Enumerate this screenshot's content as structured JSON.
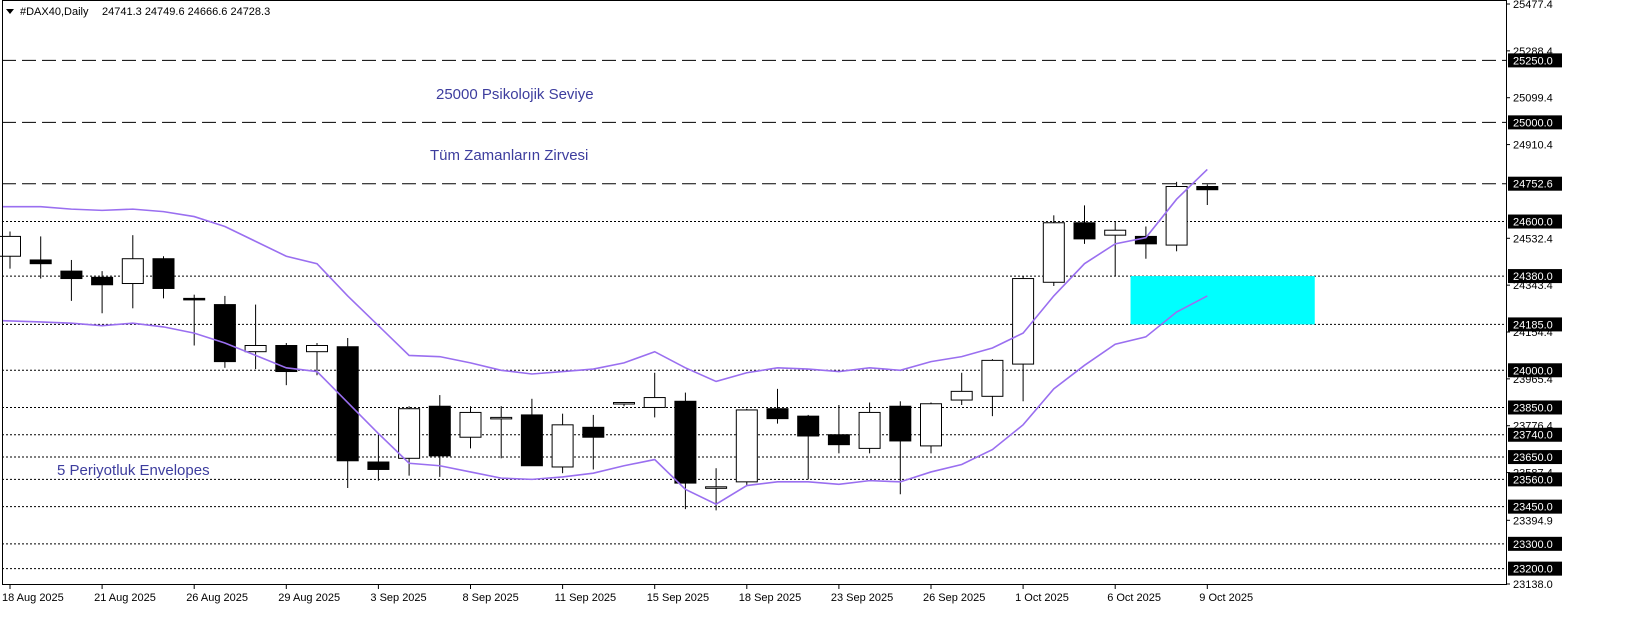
{
  "header": {
    "symbol": "#DAX40,Daily",
    "ohlc": "24741.3 24749.6 24666.6 24728.3"
  },
  "chart_data": {
    "type": "candlestick",
    "title": "#DAX40,Daily",
    "ylim": [
      23138.0,
      25477.4
    ],
    "grid": false,
    "colors": {
      "bull": "#ffffff",
      "bear": "#000000",
      "envelope": "#9a6ff0",
      "zone": "#00ffff",
      "annotation": "#3d3d9e"
    },
    "price_ticks": [
      "25477.4",
      "25288.4",
      "25099.4",
      "24910.4",
      "24532.4",
      "24343.4",
      "24154.4",
      "23965.4",
      "23776.4",
      "23587.4",
      "23394.9",
      "23138.0"
    ],
    "level_labels": [
      "25250.0",
      "25000.0",
      "24752.6",
      "24600.0",
      "24380.0",
      "24185.0",
      "24000.0",
      "23850.0",
      "23740.0",
      "23650.0",
      "23560.0",
      "23450.0",
      "23300.0",
      "23200.0"
    ],
    "dashed_levels": [
      25250.0,
      25000.0,
      24752.6
    ],
    "dotted_levels": [
      24600.0,
      24380.0,
      24185.0,
      24000.0,
      23850.0,
      23740.0,
      23650.0,
      23560.0,
      23450.0,
      23300.0,
      23200.0
    ],
    "date_labels": [
      {
        "text": "18 Aug 2025",
        "bar": 0
      },
      {
        "text": "21 Aug 2025",
        "bar": 3
      },
      {
        "text": "26 Aug 2025",
        "bar": 6
      },
      {
        "text": "29 Aug 2025",
        "bar": 9
      },
      {
        "text": "3 Sep 2025",
        "bar": 12
      },
      {
        "text": "8 Sep 2025",
        "bar": 15
      },
      {
        "text": "11 Sep 2025",
        "bar": 18
      },
      {
        "text": "15 Sep 2025",
        "bar": 21
      },
      {
        "text": "18 Sep 2025",
        "bar": 24
      },
      {
        "text": "23 Sep 2025",
        "bar": 27
      },
      {
        "text": "26 Sep 2025",
        "bar": 30
      },
      {
        "text": "1 Oct 2025",
        "bar": 33
      },
      {
        "text": "6 Oct 2025",
        "bar": 36
      },
      {
        "text": "9 Oct 2025",
        "bar": 39
      }
    ],
    "candles": [
      {
        "o": 24460,
        "h": 24560,
        "l": 24410,
        "c": 24540
      },
      {
        "o": 24445,
        "h": 24540,
        "l": 24370,
        "c": 24430
      },
      {
        "o": 24400,
        "h": 24445,
        "l": 24280,
        "c": 24370
      },
      {
        "o": 24375,
        "h": 24400,
        "l": 24230,
        "c": 24345
      },
      {
        "o": 24350,
        "h": 24545,
        "l": 24250,
        "c": 24450
      },
      {
        "o": 24450,
        "h": 24460,
        "l": 24290,
        "c": 24330
      },
      {
        "o": 24290,
        "h": 24305,
        "l": 24100,
        "c": 24285
      },
      {
        "o": 24265,
        "h": 24300,
        "l": 24010,
        "c": 24035
      },
      {
        "o": 24075,
        "h": 24265,
        "l": 24005,
        "c": 24100
      },
      {
        "o": 24100,
        "h": 24110,
        "l": 23940,
        "c": 23995
      },
      {
        "o": 24075,
        "h": 24110,
        "l": 23980,
        "c": 24100
      },
      {
        "o": 24095,
        "h": 24130,
        "l": 23525,
        "c": 23635
      },
      {
        "o": 23630,
        "h": 23740,
        "l": 23555,
        "c": 23600
      },
      {
        "o": 23645,
        "h": 23855,
        "l": 23575,
        "c": 23845
      },
      {
        "o": 23855,
        "h": 23900,
        "l": 23570,
        "c": 23655
      },
      {
        "o": 23730,
        "h": 23855,
        "l": 23685,
        "c": 23830
      },
      {
        "o": 23810,
        "h": 23855,
        "l": 23645,
        "c": 23810
      },
      {
        "o": 23820,
        "h": 23885,
        "l": 23615,
        "c": 23615
      },
      {
        "o": 23610,
        "h": 23825,
        "l": 23585,
        "c": 23780
      },
      {
        "o": 23770,
        "h": 23820,
        "l": 23600,
        "c": 23730
      },
      {
        "o": 23865,
        "h": 23870,
        "l": 23855,
        "c": 23870
      },
      {
        "o": 23850,
        "h": 23990,
        "l": 23810,
        "c": 23890
      },
      {
        "o": 23875,
        "h": 23910,
        "l": 23440,
        "c": 23545
      },
      {
        "o": 23530,
        "h": 23605,
        "l": 23435,
        "c": 23530
      },
      {
        "o": 23550,
        "h": 23845,
        "l": 23535,
        "c": 23840
      },
      {
        "o": 23845,
        "h": 23925,
        "l": 23785,
        "c": 23805
      },
      {
        "o": 23815,
        "h": 23820,
        "l": 23560,
        "c": 23735
      },
      {
        "o": 23740,
        "h": 23860,
        "l": 23665,
        "c": 23700
      },
      {
        "o": 23685,
        "h": 23870,
        "l": 23665,
        "c": 23830
      },
      {
        "o": 23855,
        "h": 23875,
        "l": 23500,
        "c": 23715
      },
      {
        "o": 23695,
        "h": 23870,
        "l": 23665,
        "c": 23865
      },
      {
        "o": 23880,
        "h": 23990,
        "l": 23860,
        "c": 23915
      },
      {
        "o": 23895,
        "h": 24045,
        "l": 23815,
        "c": 24040
      },
      {
        "o": 24025,
        "h": 24380,
        "l": 23875,
        "c": 24370
      },
      {
        "o": 24355,
        "h": 24625,
        "l": 24340,
        "c": 24595
      },
      {
        "o": 24595,
        "h": 24665,
        "l": 24510,
        "c": 24530
      },
      {
        "o": 24545,
        "h": 24600,
        "l": 24380,
        "c": 24565
      },
      {
        "o": 24540,
        "h": 24580,
        "l": 24450,
        "c": 24510
      },
      {
        "o": 24505,
        "h": 24760,
        "l": 24480,
        "c": 24741.3
      },
      {
        "o": 24741.3,
        "h": 24749.6,
        "l": 24666.6,
        "c": 24728.3
      }
    ],
    "envelope_upper": [
      24660,
      24660,
      24650,
      24645,
      24650,
      24640,
      24620,
      24580,
      24520,
      24460,
      24430,
      24300,
      24180,
      24060,
      24055,
      24030,
      24000,
      23985,
      23995,
      24005,
      24030,
      24075,
      24010,
      23955,
      23990,
      24010,
      24005,
      23995,
      24010,
      24000,
      24035,
      24055,
      24090,
      24150,
      24300,
      24430,
      24510,
      24535,
      24690,
      24810
    ],
    "envelope_lower": [
      24200,
      24195,
      24190,
      24180,
      24190,
      24175,
      24150,
      24110,
      24060,
      24010,
      23995,
      23870,
      23745,
      23625,
      23615,
      23590,
      23565,
      23560,
      23570,
      23585,
      23615,
      23640,
      23520,
      23460,
      23535,
      23550,
      23550,
      23540,
      23555,
      23550,
      23590,
      23620,
      23680,
      23780,
      23925,
      24020,
      24105,
      24135,
      24235,
      24300
    ],
    "envelope_label": "5 Periyotluk Envelopes",
    "zone": {
      "top": 24380.0,
      "bottom": 24185.0,
      "from_bar": 36.5,
      "to_bar": 42.5
    }
  },
  "annotations": {
    "psychological": "25000 Psikolojik Seviye",
    "ath": "Tüm Zamanların Zirvesi",
    "envelopes": "5 Periyotluk Envelopes"
  }
}
